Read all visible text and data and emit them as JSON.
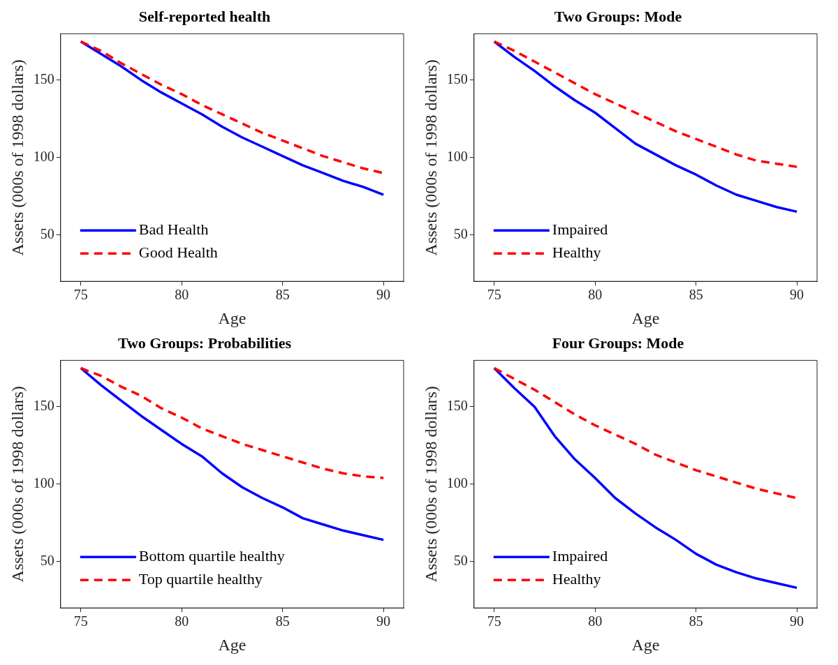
{
  "chart_data": [
    {
      "type": "line",
      "title": "Self-reported health",
      "xlabel": "Age",
      "ylabel": "Assets (000s of 1998 dollars)",
      "x": [
        75,
        76,
        77,
        78,
        79,
        80,
        81,
        82,
        83,
        84,
        85,
        86,
        87,
        88,
        89,
        90
      ],
      "xlim": [
        74,
        91
      ],
      "ylim": [
        20,
        180
      ],
      "xticks": [
        75,
        80,
        85,
        90
      ],
      "yticks": [
        50,
        100,
        150
      ],
      "legend": "bottom left",
      "grid": false,
      "marker": "none",
      "series": [
        {
          "name": "Bad Health",
          "color": "#0000ff",
          "line_style": "solid",
          "values": [
            175,
            167,
            159,
            150,
            142,
            135,
            128,
            120,
            113,
            107,
            101,
            95,
            90,
            85,
            81,
            76
          ]
        },
        {
          "name": "Good Health",
          "color": "#ff0000",
          "line_style": "dashed",
          "values": [
            175,
            169,
            161,
            154,
            147,
            141,
            134,
            128,
            122,
            116,
            111,
            106,
            101,
            97,
            93,
            90
          ]
        }
      ]
    },
    {
      "type": "line",
      "title": "Two Groups: Mode",
      "xlabel": "Age",
      "ylabel": "Assets (000s of 1998 dollars)",
      "x": [
        75,
        76,
        77,
        78,
        79,
        80,
        81,
        82,
        83,
        84,
        85,
        86,
        87,
        88,
        89,
        90
      ],
      "xlim": [
        74,
        91
      ],
      "ylim": [
        20,
        180
      ],
      "xticks": [
        75,
        80,
        85,
        90
      ],
      "yticks": [
        50,
        100,
        150
      ],
      "legend": "bottom left",
      "grid": false,
      "marker": "none",
      "series": [
        {
          "name": "Impaired",
          "color": "#0000ff",
          "line_style": "solid",
          "values": [
            175,
            165,
            156,
            146,
            137,
            129,
            119,
            109,
            102,
            95,
            89,
            82,
            76,
            72,
            68,
            65
          ]
        },
        {
          "name": "Healthy",
          "color": "#ff0000",
          "line_style": "dashed",
          "values": [
            175,
            169,
            162,
            155,
            148,
            141,
            135,
            129,
            123,
            117,
            112,
            107,
            102,
            98,
            96,
            94
          ]
        }
      ]
    },
    {
      "type": "line",
      "title": "Two Groups: Probabilities",
      "xlabel": "Age",
      "ylabel": "Assets (000s of 1998 dollars)",
      "x": [
        75,
        76,
        77,
        78,
        79,
        80,
        81,
        82,
        83,
        84,
        85,
        86,
        87,
        88,
        89,
        90
      ],
      "xlim": [
        74,
        91
      ],
      "ylim": [
        20,
        180
      ],
      "xticks": [
        75,
        80,
        85,
        90
      ],
      "yticks": [
        50,
        100,
        150
      ],
      "legend": "bottom left",
      "grid": false,
      "marker": "none",
      "series": [
        {
          "name": "Bottom quartile healthy",
          "color": "#0000ff",
          "line_style": "solid",
          "values": [
            175,
            164,
            154,
            144,
            135,
            126,
            118,
            107,
            98,
            91,
            85,
            78,
            74,
            70,
            67,
            64
          ]
        },
        {
          "name": "Top quartile healthy",
          "color": "#ff0000",
          "line_style": "dashed",
          "values": [
            175,
            170,
            163,
            157,
            149,
            143,
            136,
            131,
            126,
            122,
            118,
            114,
            110,
            107,
            105,
            104
          ]
        }
      ]
    },
    {
      "type": "line",
      "title": "Four Groups: Mode",
      "xlabel": "Age",
      "ylabel": "Assets (000s of 1998 dollars)",
      "x": [
        75,
        76,
        77,
        78,
        79,
        80,
        81,
        82,
        83,
        84,
        85,
        86,
        87,
        88,
        89,
        90
      ],
      "xlim": [
        74,
        91
      ],
      "ylim": [
        20,
        180
      ],
      "xticks": [
        75,
        80,
        85,
        90
      ],
      "yticks": [
        50,
        100,
        150
      ],
      "legend": "bottom left",
      "grid": false,
      "marker": "none",
      "series": [
        {
          "name": "Impaired",
          "color": "#0000ff",
          "line_style": "solid",
          "values": [
            175,
            162,
            150,
            131,
            116,
            104,
            91,
            81,
            72,
            64,
            55,
            48,
            43,
            39,
            36,
            33
          ]
        },
        {
          "name": "Healthy",
          "color": "#ff0000",
          "line_style": "dashed",
          "values": [
            175,
            168,
            161,
            153,
            145,
            138,
            132,
            126,
            119,
            114,
            109,
            105,
            101,
            97,
            94,
            91
          ]
        }
      ]
    }
  ]
}
